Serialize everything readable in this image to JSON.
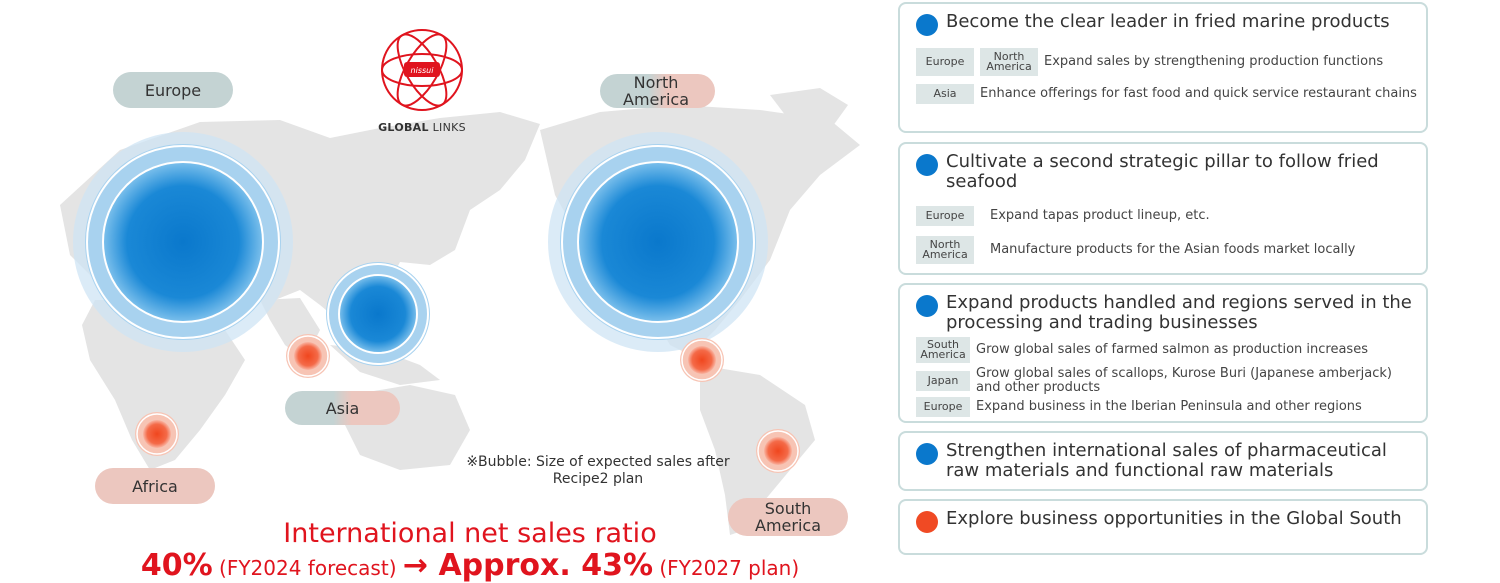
{
  "map": {
    "logo": {
      "badge": "nissui",
      "text_bold": "GLOBAL",
      "text_rest": " LINKS"
    },
    "regions": {
      "europe": "Europe",
      "north_america": "North America",
      "asia": "Asia",
      "africa": "Africa",
      "south_america": "South America"
    },
    "note": "※Bubble: Size of expected sales after Recipe2 plan",
    "ratio": {
      "title": "International net sales ratio",
      "current_value": "40%",
      "current_label": " (FY2024 forecast) ",
      "arrow": "→",
      "target_value": " Approx. 43%",
      "target_label": " (FY2027 plan)"
    },
    "colors": {
      "blue_bubble": "#0a78cc",
      "orange_bubble": "#f04a24",
      "accent_red": "#e0141e",
      "pill_blue": "#c4d3d3",
      "pill_pink": "#ecc7bf"
    }
  },
  "strategies": [
    {
      "title": "Become the clear leader in fried marine products",
      "dot_color": "#0a78cc",
      "rows": [
        {
          "tags": [
            "Europe",
            "North America"
          ],
          "text": "Expand sales by strengthening production functions"
        },
        {
          "tags": [
            "Asia"
          ],
          "text": "Enhance offerings for fast food and quick service restaurant chains"
        }
      ]
    },
    {
      "title": "Cultivate a second strategic pillar to follow fried seafood",
      "dot_color": "#0a78cc",
      "rows": [
        {
          "tags": [
            "Europe"
          ],
          "text": "Expand tapas product lineup, etc."
        },
        {
          "tags": [
            "North America"
          ],
          "text": "Manufacture products for the Asian foods market locally"
        }
      ]
    },
    {
      "title": "Expand products handled and regions served in the processing and trading businesses",
      "dot_color": "#0a78cc",
      "rows": [
        {
          "tags": [
            "South America"
          ],
          "text": "Grow global sales of farmed salmon as production increases"
        },
        {
          "tags": [
            "Japan"
          ],
          "text": "Grow global sales of scallops, Kurose Buri (Japanese amberjack) and other products"
        },
        {
          "tags": [
            "Europe"
          ],
          "text": "Expand business in the Iberian Peninsula and other regions"
        }
      ]
    },
    {
      "title": "Strengthen international sales of pharmaceutical raw materials and functional raw materials",
      "dot_color": "#0a78cc",
      "rows": []
    },
    {
      "title": "Explore business opportunities in the Global South",
      "dot_color": "#f04a24",
      "rows": []
    }
  ]
}
